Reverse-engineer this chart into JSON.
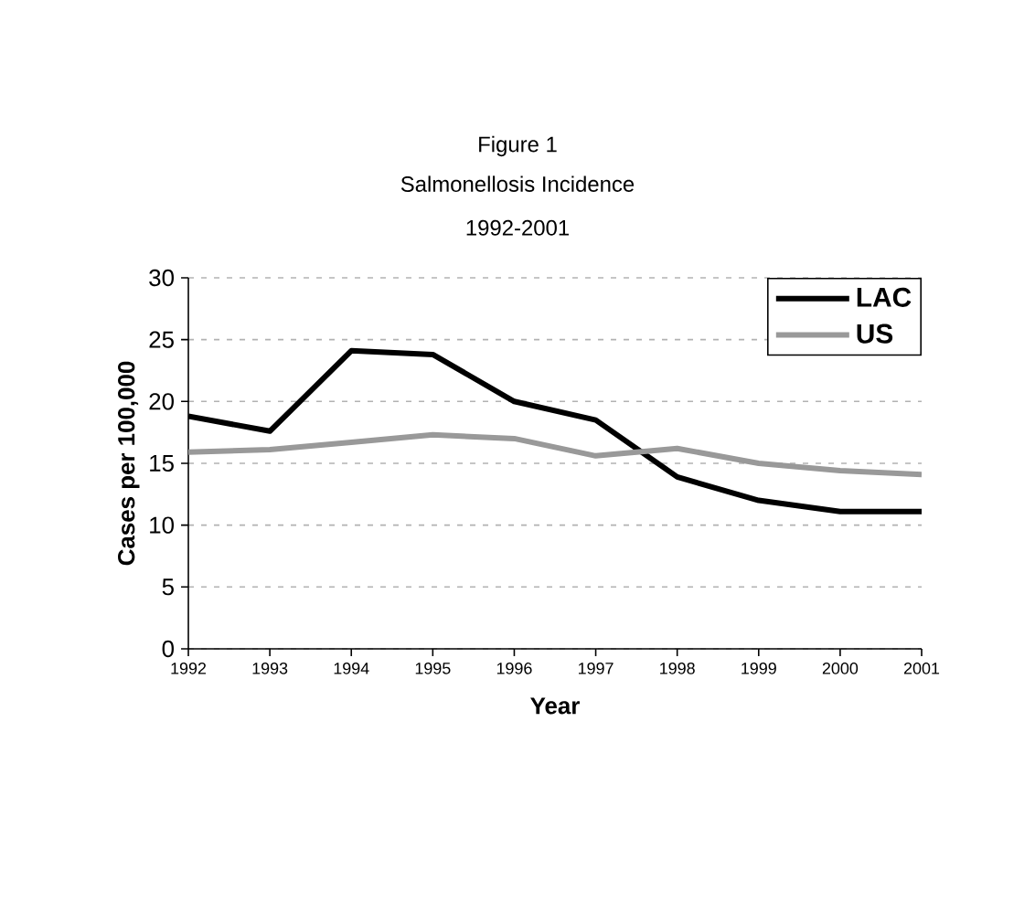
{
  "chart_data": {
    "type": "line",
    "title": "Figure 1",
    "subtitle": "Salmonellosis Incidence\n1992-2001",
    "xlabel": "Year",
    "ylabel": "Cases per 100,000",
    "x": [
      1992,
      1993,
      1994,
      1995,
      1996,
      1997,
      1998,
      1999,
      2000,
      2001
    ],
    "series": [
      {
        "name": "LAC",
        "color": "#000000",
        "values": [
          18.8,
          17.6,
          24.1,
          23.8,
          20.0,
          18.5,
          13.9,
          12.0,
          11.1,
          11.1
        ]
      },
      {
        "name": "US",
        "color": "#999999",
        "values": [
          15.9,
          16.1,
          16.7,
          17.3,
          17.0,
          15.6,
          16.2,
          15.0,
          14.4,
          14.1
        ]
      }
    ],
    "xlim": [
      1992,
      2001
    ],
    "xticks": [
      1992,
      1993,
      1994,
      1995,
      1996,
      1997,
      1998,
      1999,
      2000,
      2001
    ],
    "ylim": [
      0,
      30
    ],
    "yticks": [
      0,
      5,
      10,
      15,
      20,
      25,
      30
    ],
    "grid": "y",
    "legend": "top right",
    "marker": "none",
    "line_style": "solid"
  }
}
